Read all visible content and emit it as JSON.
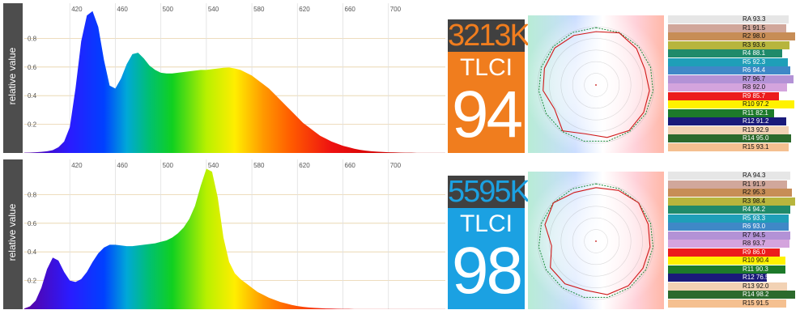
{
  "y_axis_label": "relative value",
  "chart_data": [
    {
      "type": "area",
      "title": "",
      "ylabel": "relative value",
      "xlabel": "",
      "xticks": [
        420,
        460,
        500,
        540,
        580,
        620,
        660,
        700
      ],
      "yticks": [
        0.2,
        0.4,
        0.6,
        0.8
      ],
      "xlim": [
        380,
        750
      ],
      "ylim": [
        0,
        1.0
      ],
      "grid": true,
      "x": [
        380,
        385,
        390,
        395,
        400,
        405,
        410,
        415,
        420,
        425,
        430,
        435,
        440,
        445,
        450,
        455,
        460,
        465,
        470,
        475,
        480,
        485,
        490,
        495,
        500,
        505,
        510,
        515,
        520,
        525,
        530,
        535,
        540,
        545,
        550,
        555,
        560,
        565,
        570,
        575,
        580,
        585,
        590,
        595,
        600,
        605,
        610,
        615,
        620,
        625,
        630,
        635,
        640,
        645,
        650,
        655,
        660,
        665,
        670,
        675,
        680,
        685,
        690,
        695,
        700,
        705,
        710,
        715,
        720,
        725,
        730,
        735,
        740,
        745,
        750
      ],
      "values": [
        0.002,
        0.003,
        0.005,
        0.008,
        0.012,
        0.02,
        0.04,
        0.08,
        0.18,
        0.45,
        0.78,
        0.96,
        0.99,
        0.88,
        0.65,
        0.47,
        0.45,
        0.52,
        0.62,
        0.69,
        0.7,
        0.66,
        0.61,
        0.58,
        0.56,
        0.555,
        0.555,
        0.56,
        0.565,
        0.57,
        0.575,
        0.58,
        0.58,
        0.585,
        0.59,
        0.595,
        0.597,
        0.59,
        0.58,
        0.56,
        0.54,
        0.51,
        0.48,
        0.45,
        0.41,
        0.37,
        0.33,
        0.29,
        0.25,
        0.21,
        0.18,
        0.15,
        0.12,
        0.1,
        0.08,
        0.065,
        0.05,
        0.04,
        0.03,
        0.022,
        0.016,
        0.012,
        0.009,
        0.007,
        0.005,
        0.004,
        0.003,
        0.002,
        0.002,
        0.001,
        0.001,
        0.001,
        0.001,
        0.001,
        0.001
      ]
    },
    {
      "type": "area",
      "title": "",
      "ylabel": "relative value",
      "xlabel": "",
      "xticks": [
        420,
        460,
        500,
        540,
        580,
        620,
        660,
        700
      ],
      "yticks": [
        0.2,
        0.4,
        0.6,
        0.8
      ],
      "xlim": [
        380,
        750
      ],
      "ylim": [
        0,
        1.0
      ],
      "grid": true,
      "x": [
        380,
        385,
        390,
        395,
        400,
        405,
        410,
        415,
        420,
        425,
        430,
        435,
        440,
        445,
        450,
        455,
        460,
        465,
        470,
        475,
        480,
        485,
        490,
        495,
        500,
        505,
        510,
        515,
        520,
        525,
        530,
        535,
        540,
        545,
        550,
        555,
        560,
        565,
        570,
        575,
        580,
        585,
        590,
        595,
        600,
        605,
        610,
        615,
        620,
        625,
        630,
        635,
        640,
        645,
        650,
        655,
        660,
        665,
        670,
        675,
        680,
        685,
        690,
        695,
        700,
        705,
        710,
        715,
        720,
        725,
        730,
        735,
        740,
        745,
        750
      ],
      "values": [
        0.005,
        0.02,
        0.06,
        0.15,
        0.28,
        0.36,
        0.34,
        0.26,
        0.2,
        0.19,
        0.21,
        0.26,
        0.33,
        0.39,
        0.43,
        0.45,
        0.45,
        0.445,
        0.44,
        0.44,
        0.445,
        0.45,
        0.455,
        0.46,
        0.47,
        0.48,
        0.5,
        0.53,
        0.57,
        0.63,
        0.72,
        0.86,
        0.98,
        0.96,
        0.78,
        0.5,
        0.33,
        0.25,
        0.21,
        0.18,
        0.15,
        0.12,
        0.1,
        0.08,
        0.065,
        0.05,
        0.04,
        0.03,
        0.022,
        0.016,
        0.012,
        0.009,
        0.007,
        0.005,
        0.004,
        0.003,
        0.002,
        0.002,
        0.001,
        0.001,
        0.001,
        0.001,
        0.001,
        0.001,
        0.001,
        0.001,
        0.001,
        0.001,
        0.001,
        0.001,
        0.001,
        0.001,
        0.001,
        0.001,
        0.001
      ]
    }
  ],
  "panels": [
    {
      "cct": "3213K",
      "cct_color": "#f07d1e",
      "tlci_label": "TLCI",
      "tlci_value": "94",
      "tlci_bg": "#f07d1e",
      "cri": [
        {
          "label": "RA 93.3",
          "color": "#e6e6e6",
          "value": 93.3
        },
        {
          "label": "R1 91.5",
          "color": "#d1a79b",
          "value": 91.5
        },
        {
          "label": "R2 98.0",
          "color": "#c78d56",
          "value": 98.0
        },
        {
          "label": "R3 93.6",
          "color": "#b7b53d",
          "value": 93.6
        },
        {
          "label": "R4 88.1",
          "color": "#1f8a6a",
          "value": 88.1
        },
        {
          "label": "R5 92.3",
          "color": "#1f9fb8",
          "value": 92.3
        },
        {
          "label": "R6 94.4",
          "color": "#3f88c7",
          "value": 94.4
        },
        {
          "label": "R7 96.7",
          "color": "#b392d6",
          "value": 96.7
        },
        {
          "label": "R8 92.0",
          "color": "#d4a4dd",
          "value": 92.0
        },
        {
          "label": "R9 85.7",
          "color": "#ec1c1c",
          "value": 85.7
        },
        {
          "label": "R10 97.2",
          "color": "#fff200",
          "value": 97.2
        },
        {
          "label": "R11 82.1",
          "color": "#1d7a2a",
          "value": 82.1
        },
        {
          "label": "R12 91.2",
          "color": "#1a1a7a",
          "value": 91.2
        },
        {
          "label": "R13 92.9",
          "color": "#f2d2b4",
          "value": 92.9
        },
        {
          "label": "R14 95.0",
          "color": "#2c6a2c",
          "value": 95.0
        },
        {
          "label": "R15 93.1",
          "color": "#f5c090",
          "value": 93.1
        }
      ]
    },
    {
      "cct": "5595K",
      "cct_color": "#1ba1e2",
      "tlci_label": "TLCI",
      "tlci_value": "98",
      "tlci_bg": "#1ba1e2",
      "cri": [
        {
          "label": "RA 94.3",
          "color": "#e6e6e6",
          "value": 94.3
        },
        {
          "label": "R1 91.9",
          "color": "#d1a79b",
          "value": 91.9
        },
        {
          "label": "R2 95.3",
          "color": "#c78d56",
          "value": 95.3
        },
        {
          "label": "R3 98.4",
          "color": "#b7b53d",
          "value": 98.4
        },
        {
          "label": "R4 94.2",
          "color": "#1f8a6a",
          "value": 94.2
        },
        {
          "label": "R5 93.3",
          "color": "#1f9fb8",
          "value": 93.3
        },
        {
          "label": "R6 93.0",
          "color": "#3f88c7",
          "value": 93.0
        },
        {
          "label": "R7 94.5",
          "color": "#b392d6",
          "value": 94.5
        },
        {
          "label": "R8 93.7",
          "color": "#d4a4dd",
          "value": 93.7
        },
        {
          "label": "R9 86.0",
          "color": "#ec1c1c",
          "value": 86.0
        },
        {
          "label": "R10 90.4",
          "color": "#fff200",
          "value": 90.4
        },
        {
          "label": "R11 90.3",
          "color": "#1d7a2a",
          "value": 90.3
        },
        {
          "label": "R12 76.5",
          "color": "#1a1a7a",
          "value": 76.5
        },
        {
          "label": "R13 92.0",
          "color": "#f2d2b4",
          "value": 92.0
        },
        {
          "label": "R14 98.2",
          "color": "#2c6a2c",
          "value": 98.2
        },
        {
          "label": "R15 91.5",
          "color": "#f5c090",
          "value": 91.5
        }
      ]
    }
  ]
}
